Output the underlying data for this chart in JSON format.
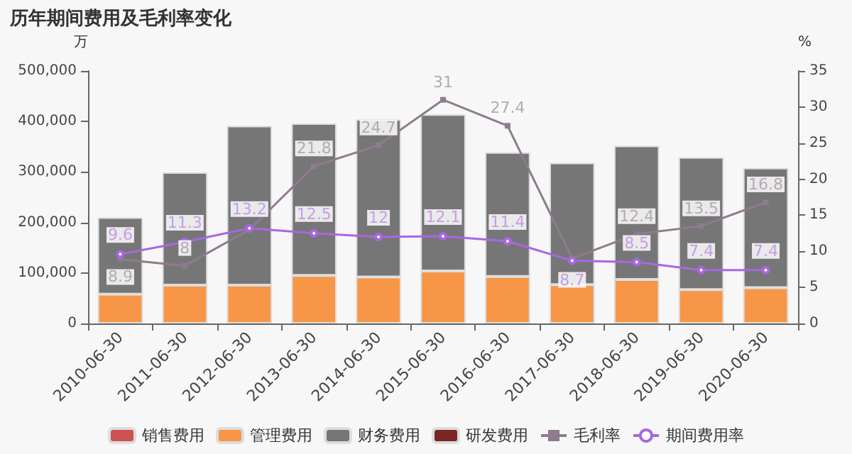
{
  "chart_data": {
    "type": "bar",
    "title": "历年期间费用及毛利率变化",
    "ylabel": "万",
    "y2label": "%",
    "categories": [
      "2010-06-30",
      "2011-06-30",
      "2012-06-30",
      "2013-06-30",
      "2014-06-30",
      "2015-06-30",
      "2016-06-30",
      "2017-06-30",
      "2018-06-30",
      "2019-06-30",
      "2020-06-30"
    ],
    "stacked": true,
    "legend": "bottom",
    "grid": false,
    "ylim": [
      0,
      500000
    ],
    "yticks": [
      {
        "value": 0,
        "label": "0"
      },
      {
        "value": 100000,
        "label": "100,000"
      },
      {
        "value": 200000,
        "label": "200,000"
      },
      {
        "value": 300000,
        "label": "300,000"
      },
      {
        "value": 400000,
        "label": "400,000"
      },
      {
        "value": 500000,
        "label": "500,000"
      }
    ],
    "y2lim": [
      0,
      35
    ],
    "y2ticks": [
      0,
      5,
      10,
      15,
      20,
      25,
      30,
      35
    ],
    "series": [
      {
        "name": "销售费用",
        "color": "#cd5252",
        "values": [
          null,
          null,
          null,
          null,
          null,
          null,
          null,
          null,
          null,
          null,
          null
        ]
      },
      {
        "name": "管理费用",
        "color": "#f79646",
        "values": [
          58000,
          76000,
          76000,
          95000,
          92000,
          104000,
          93000,
          77000,
          87000,
          67000,
          71000
        ]
      },
      {
        "name": "财务费用",
        "color": "#767676",
        "values": [
          152000,
          223000,
          315000,
          301000,
          312000,
          310000,
          246000,
          241000,
          265000,
          262000,
          237000
        ]
      },
      {
        "name": "研发费用",
        "color": "#7b2525",
        "values": [
          null,
          null,
          null,
          null,
          null,
          null,
          null,
          null,
          null,
          null,
          null
        ]
      },
      {
        "name": "毛利率",
        "type": "line",
        "axis": "y2",
        "color": "#8e7b8e",
        "marker": "square",
        "values": [
          8.9,
          8,
          13,
          21.8,
          24.7,
          31,
          27.4,
          9,
          12.4,
          13.5,
          16.8
        ],
        "value_labels": [
          "8.9",
          "8",
          null,
          "21.8",
          "24.7",
          "31",
          "27.4",
          null,
          "12.4",
          "13.5",
          "16.8"
        ]
      },
      {
        "name": "期间费用率",
        "type": "line",
        "axis": "y2",
        "color": "#a768e0",
        "marker": "circle",
        "values": [
          9.6,
          11.3,
          13.2,
          12.5,
          12,
          12.1,
          11.4,
          8.7,
          8.5,
          7.4,
          7.4
        ],
        "value_labels": [
          "9.6",
          "11.3",
          "13.2",
          "12.5",
          "12",
          "12.1",
          "11.4",
          "8.7",
          "8.5",
          "7.4",
          "7.4"
        ]
      }
    ]
  }
}
